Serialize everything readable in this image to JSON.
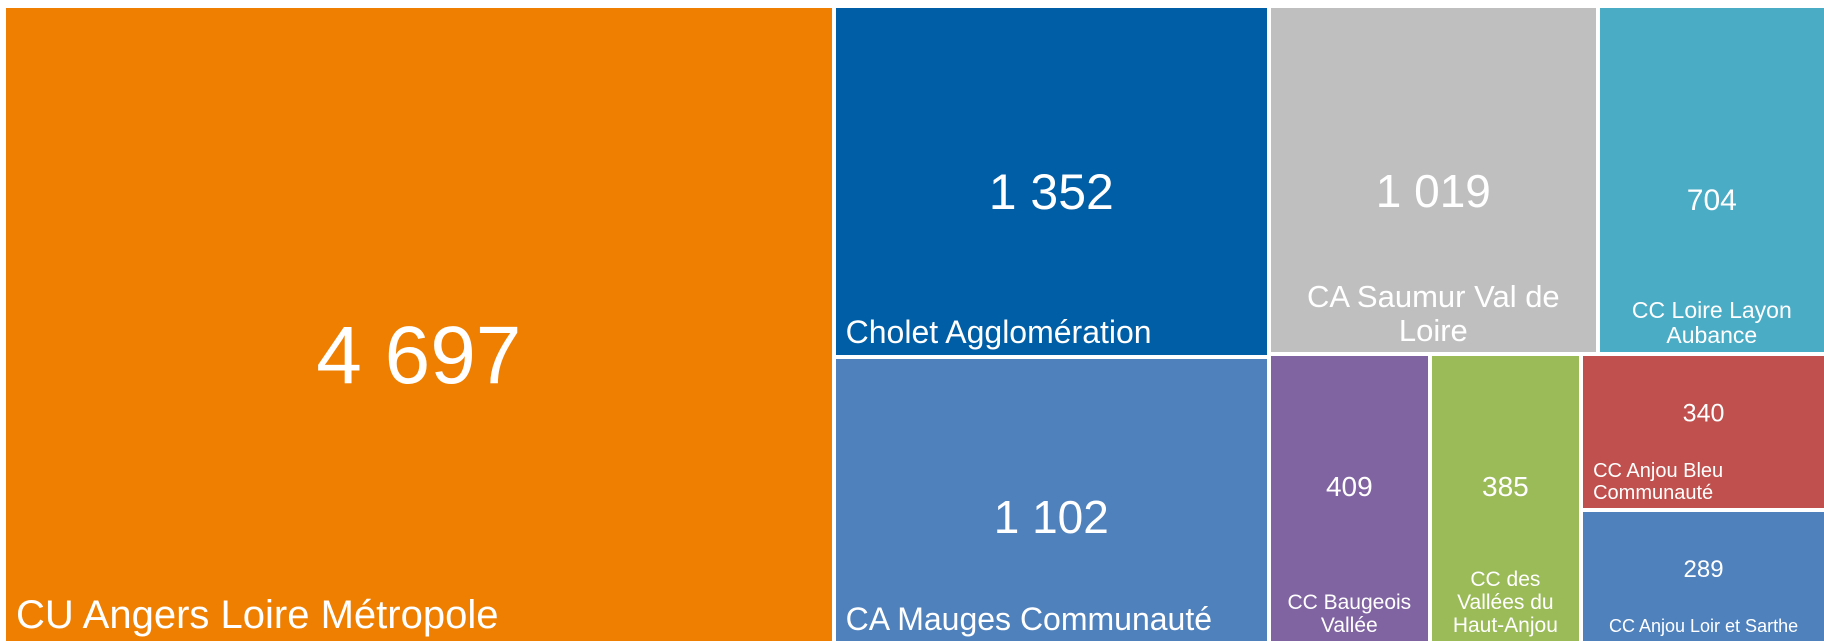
{
  "chart_data": {
    "type": "treemap",
    "categories": [
      "CU Angers Loire Métropole",
      "Cholet Agglomération",
      "CA Mauges Communauté",
      "CA Saumur Val de Loire",
      "CC Loire Layon Aubance",
      "CC Baugeois Vallée",
      "CC des Vallées du Haut-Anjou",
      "CC Anjou Bleu Communauté",
      "CC Anjou Loir et Sarthe"
    ],
    "values": [
      4697,
      1352,
      1102,
      1019,
      704,
      409,
      385,
      340,
      289
    ],
    "value_labels": [
      "4 697",
      "1 352",
      "1 102",
      "1 019",
      "704",
      "409",
      "385",
      "340",
      "289"
    ],
    "colors": [
      "#ef7f00",
      "#005ea6",
      "#4f81bd",
      "#bfbfbf",
      "#4bacc6",
      "#8064a2",
      "#9bbb59",
      "#c0504d",
      "#4f81bd"
    ]
  }
}
